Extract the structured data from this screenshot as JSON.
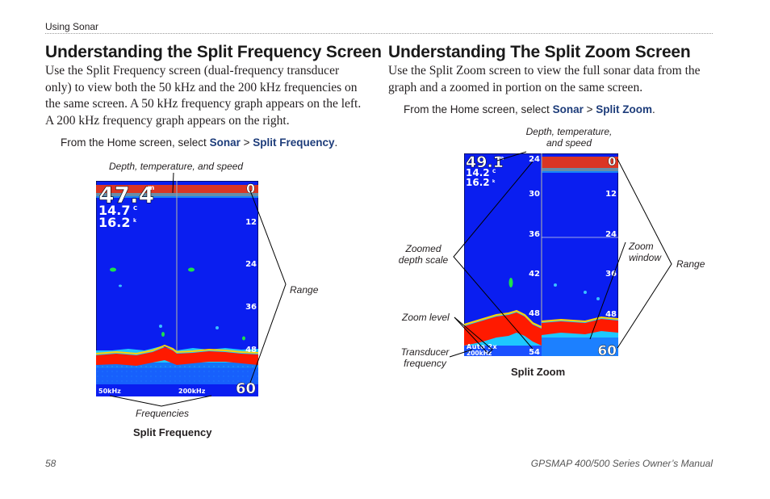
{
  "header": {
    "section": "Using Sonar"
  },
  "left": {
    "heading": "Understanding the Split Frequency Screen",
    "body": "Use the Split Frequency screen (dual-frequency transducer only) to view both the 50 kHz and the 200 kHz frequencies on the same screen. A 50 kHz frequency graph appears on the left. A 200 kHz frequency graph appears on the right.",
    "instruction_prefix": "From the Home screen, select ",
    "menu1": "Sonar",
    "sep": " > ",
    "menu2": "Split Frequency",
    "period": ".",
    "figure": {
      "label_top": "Depth, temperature, and speed",
      "label_range": "Range",
      "label_freq": "Frequencies",
      "caption": "Split Frequency",
      "screen": {
        "depth": "47.4",
        "depth_unit": "m",
        "temp": "14.7",
        "temp_unit": "C",
        "speed": "16.2",
        "speed_unit": "k",
        "scale_top": "0",
        "scale": [
          "12",
          "24",
          "36",
          "48"
        ],
        "scale_bottom": "60",
        "freq_left": "50kHz",
        "freq_right": "200kHz"
      }
    }
  },
  "right": {
    "heading": "Understanding The Split Zoom Screen",
    "body": "Use the Split Zoom screen to view the full sonar data from the graph and a zoomed in portion on the same screen.",
    "instruction_prefix": "From the Home screen, select ",
    "menu1": "Sonar",
    "sep": " > ",
    "menu2": "Split Zoom",
    "period": ".",
    "figure": {
      "label_top1": "Depth, temperature,",
      "label_top2": "and speed",
      "label_zoomed1": "Zoomed",
      "label_zoomed2": "depth scale",
      "label_zoom_level": "Zoom level",
      "label_transducer1": "Transducer",
      "label_transducer2": "frequency",
      "label_zoom_window1": "Zoom",
      "label_zoom_window2": "window",
      "label_range": "Range",
      "caption": "Split Zoom",
      "screen": {
        "depth": "49.1",
        "depth_unit": "m",
        "temp": "14.2",
        "temp_unit": "C",
        "speed": "16.2",
        "speed_unit": "k",
        "zoom_scale": [
          "24",
          "30",
          "36",
          "42",
          "48",
          "54"
        ],
        "full_scale_top": "0",
        "full_scale": [
          "12",
          "24",
          "36",
          "48"
        ],
        "full_scale_bottom": "60",
        "zoom_mode": "Auto 2x",
        "freq": "200kHz"
      }
    }
  },
  "footer": {
    "page": "58",
    "manual": "GPSMAP 400/500 Series Owner’s Manual"
  },
  "colors": {
    "water": "#0a1ef0",
    "bottom_red": "#ff1a00",
    "accent_text": "#1d3c7a"
  }
}
